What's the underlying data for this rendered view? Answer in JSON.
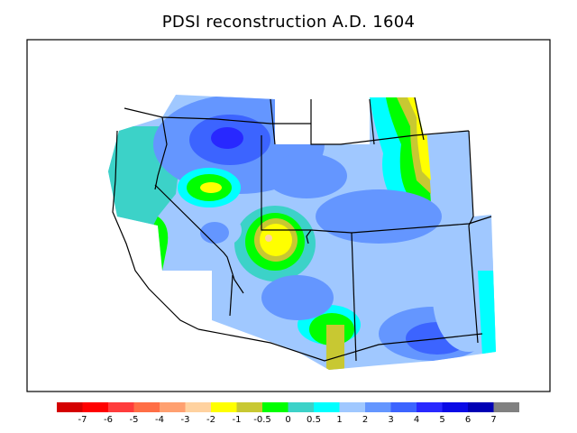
{
  "title": "PDSI reconstruction A.D. 1604",
  "legend": {
    "colors": [
      "#d40000",
      "#ff0000",
      "#ff3c3c",
      "#ff6e46",
      "#ffa070",
      "#ffd2a0",
      "#ffff00",
      "#c8c832",
      "#00ff00",
      "#3cd2c8",
      "#00ffff",
      "#a0c8ff",
      "#6496ff",
      "#3c64ff",
      "#2828ff",
      "#0a0ae6",
      "#0000b4",
      "#808080"
    ],
    "labels": [
      "-7",
      "-6",
      "-5",
      "-4",
      "-3",
      "-2",
      "-1",
      "-0.5",
      "0",
      "0.5",
      "1",
      "2",
      "3",
      "4",
      "5",
      "6",
      "7"
    ]
  },
  "map_colors": {
    "teal": "#3cd2c8",
    "cyan": "#00ffff",
    "light_blue": "#a0c8ff",
    "mid_blue": "#6496ff",
    "blue": "#3c64ff",
    "dark_blue": "#2828ff",
    "green": "#00ff00",
    "olive": "#c8c832",
    "yellow": "#ffff00",
    "pink": "#ffd2a0"
  }
}
